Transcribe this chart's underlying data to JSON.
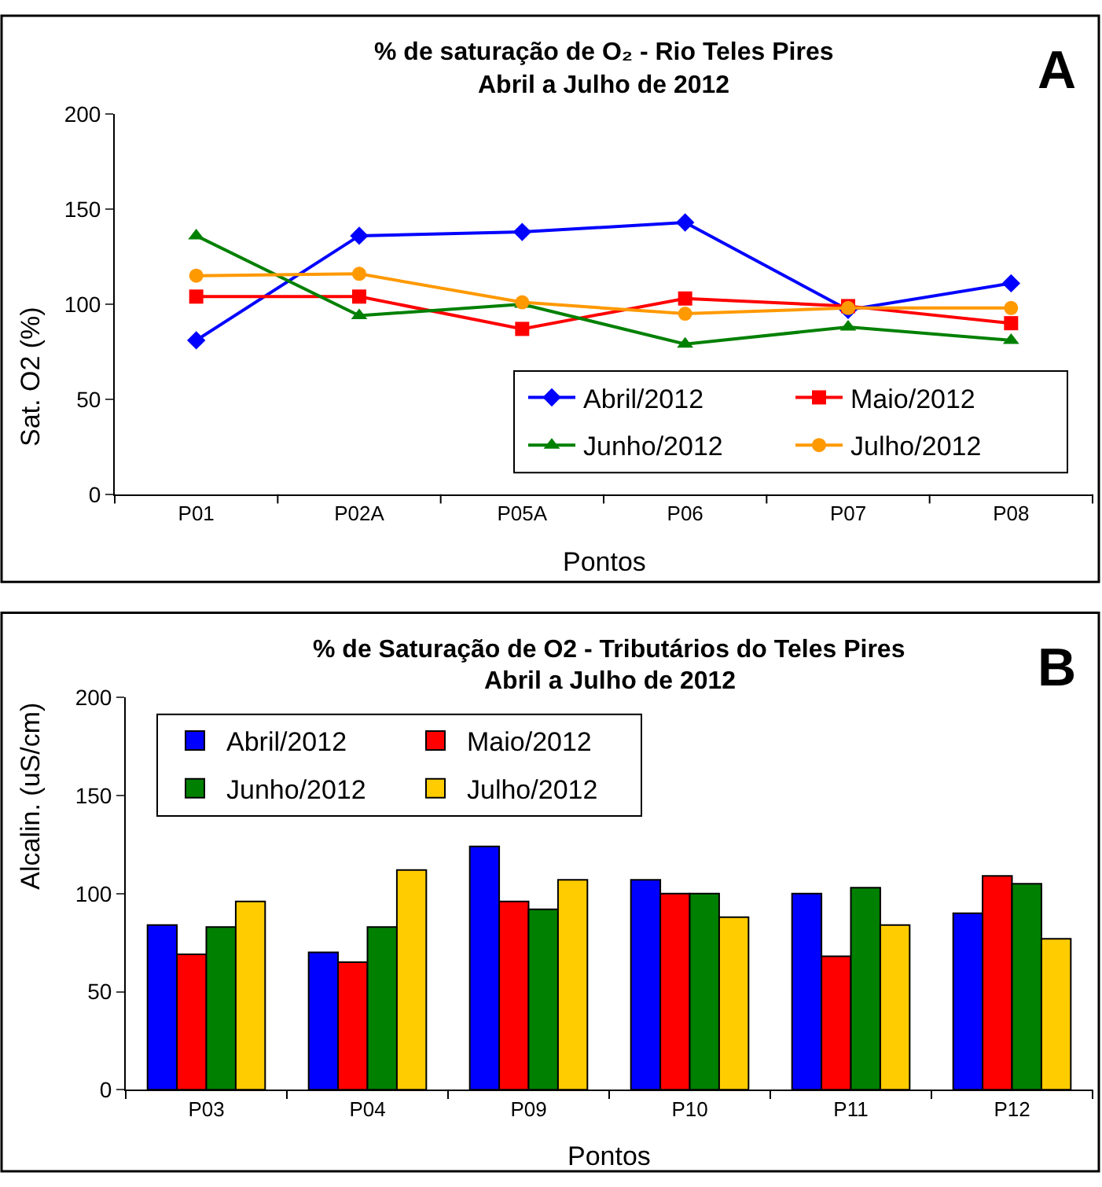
{
  "chart_data": [
    {
      "type": "line",
      "title": "% de saturação de O₂ - Rio Teles Pires",
      "subtitle": "Abril a Julho de 2012",
      "xlabel": "Pontos",
      "ylabel": "Sat. O2 (%)",
      "annotations": [
        "A"
      ],
      "categories": [
        "P01",
        "P02A",
        "P05A",
        "P06",
        "P07",
        "P08"
      ],
      "series": [
        {
          "name": "Abril/2012",
          "color": "#0000ff",
          "marker": "diamond",
          "values": [
            81,
            136,
            138,
            143,
            97,
            111
          ]
        },
        {
          "name": "Maio/2012",
          "color": "#ff0000",
          "marker": "square",
          "values": [
            104,
            104,
            87,
            103,
            99,
            90
          ]
        },
        {
          "name": "Junho/2012",
          "color": "#008000",
          "marker": "triangle",
          "values": [
            136,
            94,
            100,
            79,
            88,
            81
          ]
        },
        {
          "name": "Julho/2012",
          "color": "#ff9900",
          "marker": "circle",
          "values": [
            115,
            116,
            101,
            95,
            98,
            98
          ]
        }
      ],
      "ylim": [
        0,
        200
      ],
      "yticks": [
        0,
        50,
        100,
        150,
        200
      ],
      "legend": "bottom right",
      "line_style": "solid"
    },
    {
      "type": "bar",
      "title": "% de Saturação de O2 - Tributários do Teles Pires",
      "subtitle": "Abril a Julho de 2012",
      "xlabel": "Pontos",
      "ylabel": "Alcalin. (uS/cm)",
      "annotations": [
        "B"
      ],
      "categories": [
        "P03",
        "P04",
        "P09",
        "P10",
        "P11",
        "P12"
      ],
      "series": [
        {
          "name": "Abril/2012",
          "color": "#0000ff",
          "values": [
            84,
            70,
            124,
            107,
            100,
            90
          ]
        },
        {
          "name": "Maio/2012",
          "color": "#ff0000",
          "values": [
            69,
            65,
            96,
            100,
            68,
            109
          ]
        },
        {
          "name": "Junho/2012",
          "color": "#008000",
          "values": [
            83,
            83,
            92,
            100,
            103,
            105
          ]
        },
        {
          "name": "Julho/2012",
          "color": "#ffcc00",
          "values": [
            96,
            112,
            107,
            88,
            84,
            77
          ]
        }
      ],
      "ylim": [
        0,
        200
      ],
      "yticks": [
        0,
        50,
        100,
        150,
        200
      ],
      "legend": "top left"
    }
  ]
}
